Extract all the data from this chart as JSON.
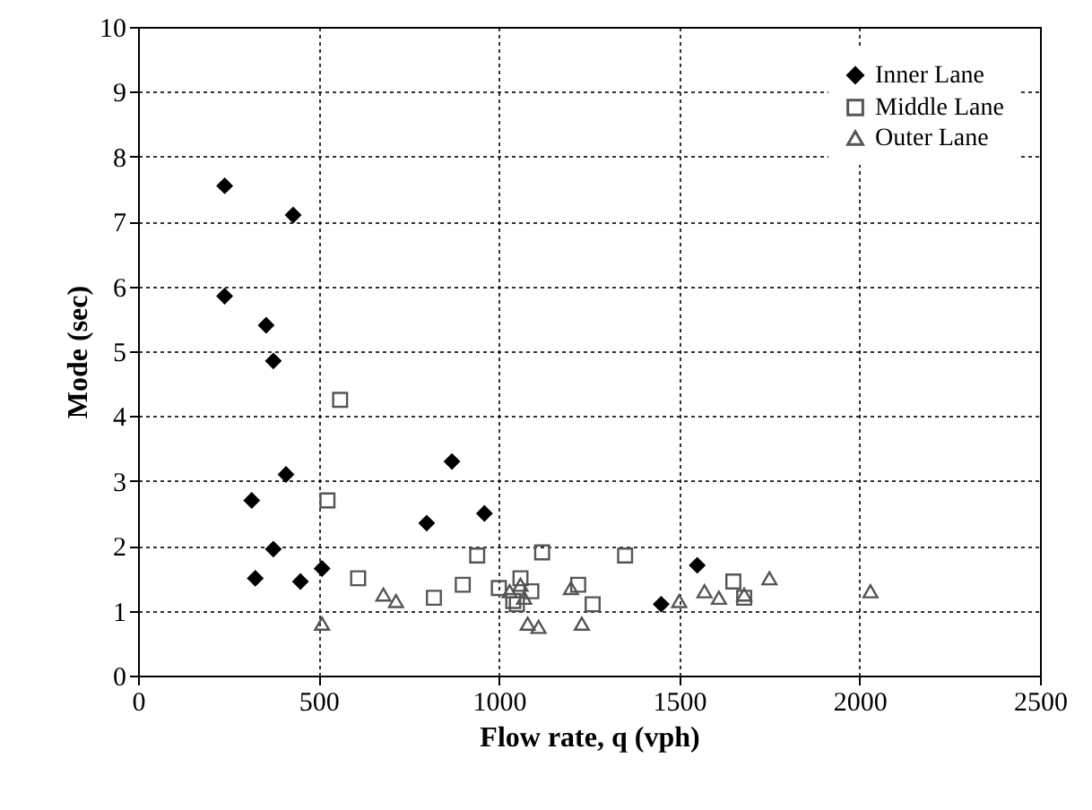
{
  "chart_data": {
    "type": "scatter",
    "xlabel": "Flow rate, q (vph)",
    "ylabel": "Mode (sec)",
    "xlim": [
      0,
      2500
    ],
    "xticks": [
      0,
      500,
      1000,
      1500,
      2000,
      2500
    ],
    "ylim": [
      0,
      10
    ],
    "yticks": [
      0,
      1,
      2,
      3,
      4,
      5,
      6,
      7,
      8,
      9,
      10
    ],
    "grid": true,
    "legend": "top right",
    "series": [
      {
        "name": "Inner Lane",
        "color": "#000000",
        "marker": "diamond",
        "x": [
          240,
          430,
          240,
          355,
          375,
          410,
          315,
          375,
          325,
          450,
          510,
          800,
          870,
          960,
          1450,
          1550
        ],
        "values": [
          7.55,
          7.1,
          5.85,
          5.4,
          4.85,
          3.1,
          2.7,
          1.95,
          1.5,
          1.45,
          1.65,
          2.35,
          3.3,
          2.5,
          1.1,
          1.7
        ]
      },
      {
        "name": "Middle Lane",
        "color": "#555555",
        "marker": "square",
        "x": [
          560,
          525,
          610,
          820,
          900,
          940,
          1000,
          1040,
          1060,
          1090,
          1120,
          1220,
          1260,
          1350,
          1650,
          1680,
          1050
        ],
        "values": [
          4.25,
          2.7,
          1.5,
          1.2,
          1.4,
          1.85,
          1.35,
          1.15,
          1.5,
          1.3,
          1.9,
          1.4,
          1.1,
          1.85,
          1.45,
          1.2,
          1.1
        ]
      },
      {
        "name": "Outer Lane",
        "color": "#555555",
        "marker": "triangle",
        "x": [
          510,
          680,
          715,
          1030,
          1070,
          1080,
          1110,
          1200,
          1230,
          1500,
          1570,
          1610,
          1680,
          1750,
          2030,
          1060
        ],
        "values": [
          0.8,
          1.25,
          1.15,
          1.3,
          1.2,
          0.8,
          0.75,
          1.35,
          0.8,
          1.15,
          1.3,
          1.2,
          1.25,
          1.5,
          1.3,
          1.4
        ]
      }
    ]
  }
}
